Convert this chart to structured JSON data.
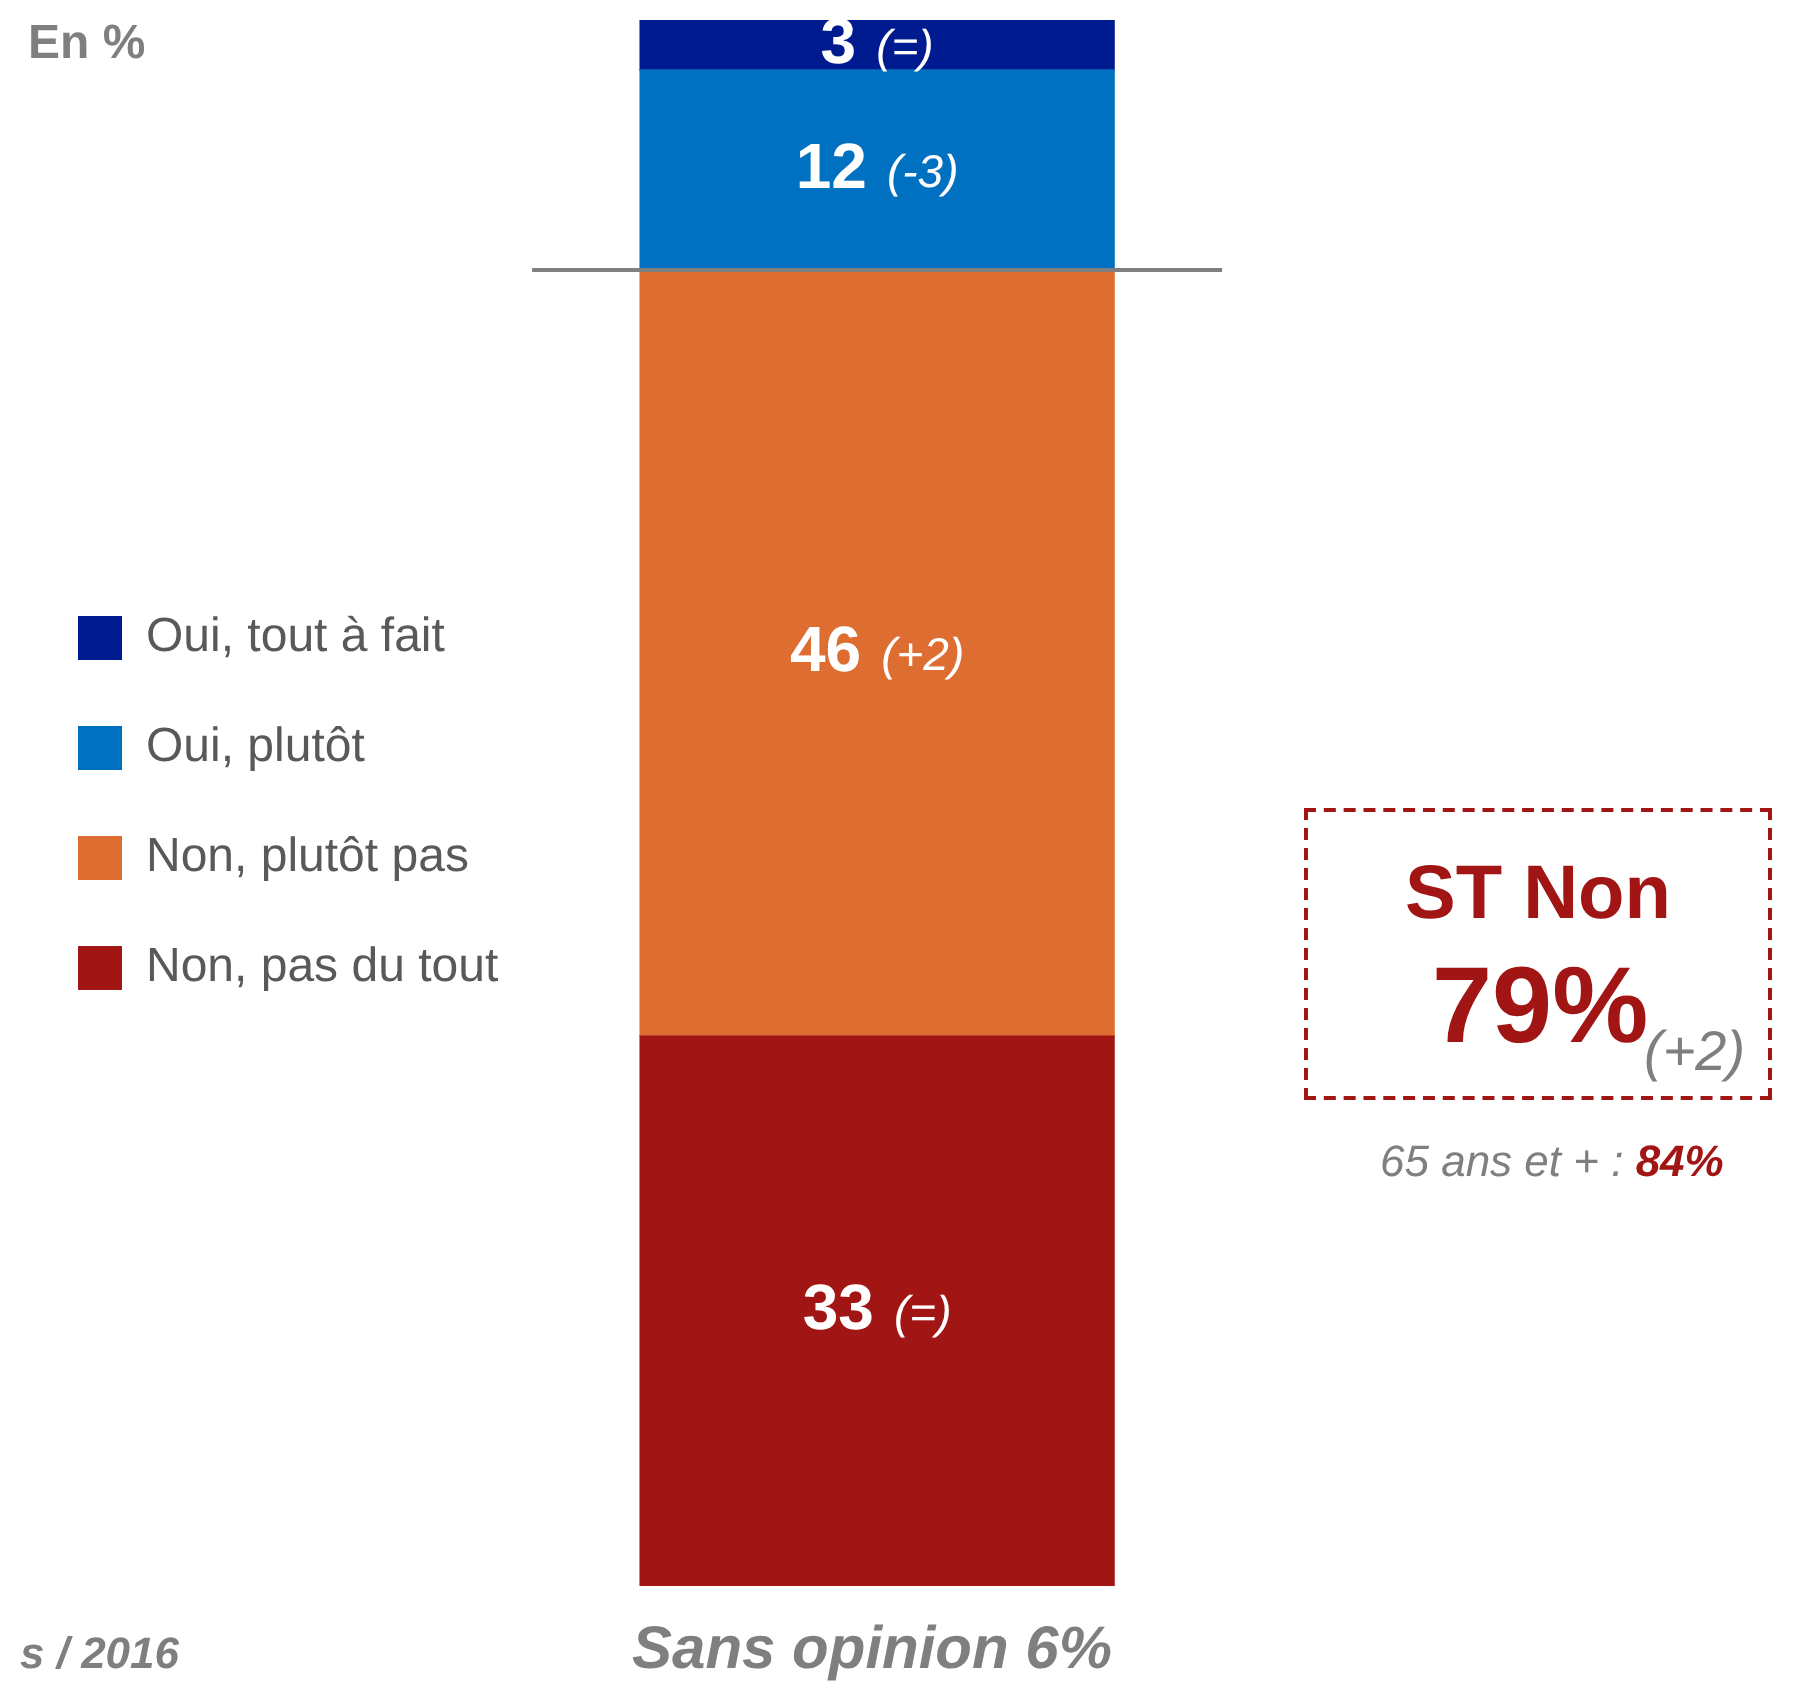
{
  "chart_data": {
    "type": "bar",
    "stacked": true,
    "title": "En %",
    "categories": [
      null
    ],
    "series": [
      {
        "name": "Non, pas du tout",
        "color": "#a11515",
        "values": [
          33
        ],
        "value_labels": [
          "33 (=)"
        ]
      },
      {
        "name": "Non, plutôt pas",
        "color": "#dd6d30",
        "values": [
          46
        ],
        "value_labels": [
          "46 (+2)"
        ]
      },
      {
        "name": "Oui, plutôt",
        "color": "#0070c0",
        "values": [
          12
        ],
        "value_labels": [
          "12 (-3)"
        ]
      },
      {
        "name": "Oui, tout à fait",
        "color": "#001a8f",
        "values": [
          3
        ],
        "value_labels": [
          "3 (=)"
        ]
      }
    ],
    "ref_lines": [
      {
        "axis": "y",
        "value": 79,
        "color": "#7f7f7f"
      }
    ],
    "annotations": [
      "ST Non",
      "79%",
      "(+2)",
      "65 ans et + : 84%",
      "Sans opinion 6%",
      "s / 2016"
    ],
    "legend": "left"
  }
}
